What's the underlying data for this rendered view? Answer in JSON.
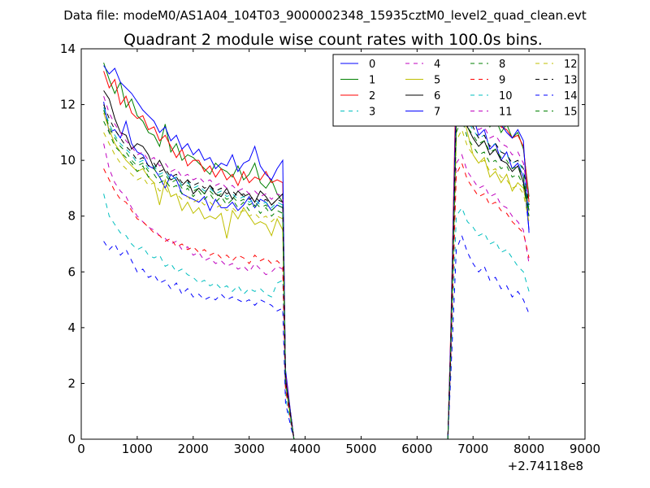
{
  "figure": {
    "suptitle": "Data file: modeM0/AS1A04_104T03_9000002348_15935cztM0_level2_quad_clean.evt"
  },
  "chart_data": {
    "type": "line",
    "title": "Quadrant 2 module wise count rates with 100.0s bins.",
    "xlabel": "",
    "ylabel": "",
    "x_offset_label": "+2.74118e8",
    "xlim": [
      0,
      9000
    ],
    "ylim": [
      0,
      14
    ],
    "xticks": [
      0,
      1000,
      2000,
      3000,
      4000,
      5000,
      6000,
      7000,
      8000,
      9000
    ],
    "yticks": [
      0,
      2,
      4,
      6,
      8,
      10,
      12,
      14
    ],
    "xtick_labels": [
      "0",
      "1000",
      "2000",
      "3000",
      "4000",
      "5000",
      "6000",
      "7000",
      "8000",
      "9000"
    ],
    "ytick_labels": [
      "0",
      "2",
      "4",
      "6",
      "8",
      "10",
      "12",
      "14"
    ],
    "grid": false,
    "legend_position": "top-right",
    "legend_columns": 4,
    "x": [
      400,
      500,
      600,
      700,
      800,
      900,
      1000,
      1100,
      1200,
      1300,
      1400,
      1500,
      1600,
      1700,
      1800,
      1900,
      2000,
      2100,
      2200,
      2300,
      2400,
      2500,
      2600,
      2700,
      2800,
      2900,
      3000,
      3100,
      3200,
      3300,
      3400,
      3500,
      3600,
      3650,
      3750,
      3800,
      3850,
      6500,
      6550,
      6600,
      6700,
      6800,
      6900,
      7000,
      7100,
      7200,
      7300,
      7400,
      7500,
      7600,
      7700,
      7800,
      7900,
      8000
    ],
    "series": [
      {
        "name": "0",
        "color": "#0000ff",
        "style": "solid",
        "values": [
          12.1,
          11.0,
          11.1,
          10.8,
          11.4,
          10.6,
          10.3,
          10.2,
          9.8,
          9.7,
          9.4,
          9.0,
          9.5,
          9.3,
          8.8,
          8.7,
          8.6,
          8.5,
          8.7,
          8.2,
          8.6,
          8.3,
          8.3,
          8.5,
          8.2,
          8.4,
          8.7,
          8.3,
          8.6,
          8.5,
          8.2,
          8.4,
          8.3,
          2.5,
          0.8,
          0.0,
          0.0,
          0.0,
          0.0,
          3.0,
          11.4,
          12.3,
          11.2,
          11.6,
          10.9,
          11.1,
          10.4,
          10.6,
          10.0,
          10.3,
          9.7,
          9.9,
          9.4,
          7.5
        ]
      },
      {
        "name": "1",
        "color": "#008000",
        "style": "solid",
        "values": [
          13.5,
          12.9,
          12.4,
          12.8,
          11.9,
          12.2,
          11.6,
          11.4,
          11.0,
          10.9,
          10.5,
          11.3,
          10.3,
          10.6,
          10.0,
          10.2,
          10.1,
          9.9,
          9.7,
          9.5,
          9.9,
          9.7,
          9.6,
          9.4,
          9.8,
          9.3,
          9.5,
          9.9,
          9.2,
          9.0,
          9.3,
          8.8,
          8.5,
          2.0,
          0.7,
          0.0,
          0.0,
          0.0,
          0.0,
          3.5,
          12.8,
          13.0,
          12.6,
          12.1,
          11.8,
          11.7,
          11.2,
          11.5,
          11.0,
          11.3,
          10.8,
          11.0,
          10.4,
          8.7
        ]
      },
      {
        "name": "2",
        "color": "#ff0000",
        "style": "solid",
        "values": [
          13.2,
          12.6,
          12.9,
          12.0,
          12.3,
          11.7,
          11.5,
          11.6,
          11.1,
          11.2,
          10.7,
          10.9,
          10.5,
          10.1,
          10.4,
          9.8,
          10.0,
          10.0,
          9.6,
          9.8,
          9.4,
          9.7,
          9.3,
          9.5,
          9.1,
          9.6,
          9.2,
          9.4,
          9.3,
          9.6,
          9.2,
          9.3,
          9.2,
          2.3,
          0.8,
          0.0,
          0.0,
          0.0,
          0.0,
          3.8,
          13.3,
          12.7,
          12.3,
          12.6,
          11.9,
          12.0,
          11.5,
          11.6,
          11.2,
          11.1,
          10.8,
          10.9,
          10.5,
          8.5
        ]
      },
      {
        "name": "3",
        "color": "#00bfbf",
        "style": "dashed",
        "values": [
          8.8,
          8.0,
          7.7,
          7.4,
          7.3,
          7.0,
          6.8,
          6.9,
          6.6,
          6.5,
          6.6,
          6.2,
          6.3,
          6.0,
          6.1,
          5.9,
          5.8,
          5.6,
          5.7,
          5.5,
          5.6,
          5.4,
          5.5,
          5.3,
          5.5,
          5.2,
          5.4,
          5.3,
          5.4,
          5.2,
          5.1,
          5.6,
          5.7,
          1.5,
          0.5,
          0.0,
          0.0,
          0.0,
          0.0,
          2.5,
          8.0,
          8.3,
          7.8,
          7.6,
          7.3,
          7.4,
          7.0,
          7.1,
          6.7,
          6.8,
          6.5,
          6.2,
          6.0,
          5.3
        ]
      },
      {
        "name": "4",
        "color": "#bf00bf",
        "style": "dashed",
        "values": [
          10.6,
          9.7,
          9.2,
          8.9,
          8.7,
          8.3,
          8.0,
          7.8,
          7.6,
          7.5,
          7.3,
          7.2,
          7.0,
          7.1,
          6.8,
          6.9,
          6.6,
          6.7,
          6.4,
          6.5,
          6.3,
          6.4,
          6.2,
          6.3,
          6.1,
          6.2,
          6.0,
          6.3,
          6.1,
          5.9,
          6.0,
          6.2,
          6.1,
          1.8,
          0.6,
          0.0,
          0.0,
          0.0,
          0.0,
          2.8,
          9.9,
          10.2,
          9.6,
          9.3,
          9.0,
          9.1,
          8.7,
          8.8,
          8.4,
          8.3,
          8.0,
          7.8,
          7.5,
          6.3
        ]
      },
      {
        "name": "5",
        "color": "#bfbf00",
        "style": "solid",
        "values": [
          11.7,
          11.1,
          10.6,
          10.3,
          10.0,
          9.8,
          9.6,
          9.7,
          9.4,
          9.2,
          8.4,
          9.3,
          8.7,
          8.8,
          8.2,
          8.5,
          8.1,
          8.3,
          7.9,
          8.0,
          7.9,
          8.1,
          7.2,
          8.2,
          7.9,
          8.3,
          8.0,
          7.7,
          7.8,
          7.7,
          7.3,
          7.9,
          7.5,
          2.1,
          0.7,
          0.0,
          0.0,
          0.0,
          0.0,
          3.2,
          11.2,
          11.8,
          11.0,
          10.2,
          9.9,
          10.1,
          9.4,
          9.6,
          9.2,
          9.5,
          8.9,
          9.2,
          9.0,
          8.0
        ]
      },
      {
        "name": "6",
        "color": "#000000",
        "style": "solid",
        "values": [
          12.5,
          12.2,
          11.5,
          11.0,
          10.9,
          10.4,
          10.6,
          10.5,
          10.2,
          9.7,
          10.0,
          9.6,
          9.3,
          9.4,
          9.1,
          9.3,
          8.8,
          9.0,
          8.8,
          9.1,
          8.8,
          8.7,
          9.0,
          8.6,
          8.9,
          8.7,
          8.8,
          8.5,
          8.9,
          8.7,
          8.4,
          8.6,
          8.8,
          2.1,
          0.7,
          0.0,
          0.0,
          0.0,
          0.0,
          3.3,
          12.3,
          11.6,
          11.2,
          10.8,
          10.5,
          10.7,
          10.2,
          10.4,
          10.0,
          9.9,
          9.6,
          9.8,
          9.2,
          8.2
        ]
      },
      {
        "name": "7",
        "color": "#0000ff",
        "style": "solid",
        "values": [
          13.4,
          13.1,
          13.3,
          12.8,
          12.6,
          12.4,
          12.1,
          11.8,
          11.6,
          11.4,
          11.0,
          11.2,
          10.7,
          10.9,
          10.4,
          10.6,
          10.2,
          10.4,
          10.0,
          10.1,
          9.7,
          9.9,
          9.8,
          10.2,
          9.6,
          9.9,
          10.0,
          10.5,
          9.8,
          9.5,
          9.3,
          9.7,
          10.0,
          2.2,
          0.8,
          0.0,
          0.0,
          0.0,
          0.0,
          3.6,
          12.6,
          13.4,
          12.9,
          12.5,
          12.2,
          11.9,
          11.4,
          11.7,
          11.3,
          11.0,
          10.8,
          11.1,
          10.7,
          7.4
        ]
      },
      {
        "name": "8",
        "color": "#008000",
        "style": "dashed",
        "values": [
          11.4,
          11.0,
          10.5,
          10.3,
          10.1,
          9.9,
          9.6,
          9.8,
          9.4,
          9.5,
          9.2,
          9.3,
          9.0,
          9.1,
          8.8,
          9.0,
          8.7,
          8.9,
          8.6,
          8.8,
          8.5,
          8.7,
          8.4,
          8.6,
          8.3,
          8.5,
          8.2,
          8.4,
          8.1,
          8.3,
          8.0,
          8.2,
          8.1,
          2.0,
          0.7,
          0.0,
          0.0,
          0.0,
          0.0,
          3.1,
          11.0,
          11.5,
          10.8,
          10.5,
          10.2,
          10.3,
          9.9,
          10.0,
          9.7,
          9.8,
          9.4,
          9.5,
          9.1,
          8.0
        ]
      },
      {
        "name": "9",
        "color": "#ff0000",
        "style": "dashed",
        "values": [
          9.7,
          9.3,
          8.9,
          8.6,
          8.5,
          8.2,
          7.9,
          7.8,
          7.6,
          7.4,
          7.3,
          7.1,
          7.2,
          6.9,
          7.0,
          6.8,
          6.9,
          6.7,
          6.8,
          6.6,
          6.7,
          6.5,
          6.6,
          6.4,
          6.6,
          6.5,
          6.3,
          6.6,
          6.4,
          6.5,
          6.3,
          6.4,
          6.2,
          1.8,
          0.6,
          0.0,
          0.0,
          0.0,
          0.0,
          2.9,
          9.5,
          9.9,
          9.3,
          9.0,
          8.7,
          8.8,
          8.4,
          8.5,
          8.2,
          8.1,
          7.8,
          7.6,
          7.4,
          6.5
        ]
      },
      {
        "name": "10",
        "color": "#00bfbf",
        "style": "dashed",
        "values": [
          11.9,
          11.3,
          10.9,
          10.6,
          10.4,
          10.2,
          9.9,
          10.0,
          9.7,
          9.8,
          9.5,
          9.6,
          9.3,
          9.4,
          9.1,
          9.2,
          9.0,
          9.1,
          8.9,
          9.0,
          8.8,
          8.9,
          8.7,
          8.8,
          8.6,
          8.7,
          8.5,
          8.6,
          8.4,
          8.5,
          8.3,
          8.5,
          8.4,
          2.1,
          0.7,
          0.0,
          0.0,
          0.0,
          0.0,
          3.3,
          11.6,
          12.0,
          11.4,
          11.1,
          10.8,
          10.9,
          10.5,
          10.6,
          10.3,
          10.2,
          9.9,
          10.0,
          9.6,
          8.3
        ]
      },
      {
        "name": "11",
        "color": "#bf00bf",
        "style": "dashed",
        "values": [
          12.3,
          11.7,
          11.3,
          11.0,
          10.7,
          10.5,
          10.2,
          10.3,
          10.0,
          10.1,
          9.8,
          9.9,
          9.6,
          9.7,
          9.4,
          9.5,
          9.3,
          9.4,
          9.2,
          9.3,
          9.1,
          9.2,
          9.0,
          9.1,
          8.9,
          9.0,
          8.8,
          8.9,
          8.7,
          8.8,
          8.6,
          8.8,
          8.7,
          2.2,
          0.7,
          0.0,
          0.0,
          0.0,
          0.0,
          3.4,
          12.0,
          12.4,
          11.8,
          11.5,
          11.1,
          11.2,
          10.8,
          10.9,
          10.6,
          10.5,
          10.2,
          10.3,
          9.9,
          8.6
        ]
      },
      {
        "name": "12",
        "color": "#bfbf00",
        "style": "dashed",
        "values": [
          11.0,
          10.6,
          10.2,
          9.9,
          9.7,
          9.5,
          9.3,
          9.4,
          9.1,
          9.2,
          8.9,
          9.0,
          8.7,
          8.8,
          8.6,
          8.7,
          8.5,
          8.6,
          8.4,
          8.5,
          8.3,
          8.4,
          8.2,
          8.3,
          8.1,
          8.2,
          8.0,
          8.1,
          7.9,
          8.0,
          7.8,
          8.0,
          7.9,
          2.0,
          0.6,
          0.0,
          0.0,
          0.0,
          0.0,
          3.0,
          10.7,
          11.1,
          10.5,
          10.2,
          9.9,
          10.0,
          9.6,
          9.7,
          9.4,
          9.3,
          9.0,
          9.1,
          8.8,
          7.8
        ]
      },
      {
        "name": "13",
        "color": "#000000",
        "style": "dashed",
        "values": [
          12.0,
          11.5,
          11.1,
          10.8,
          10.5,
          10.3,
          10.0,
          10.1,
          9.8,
          9.9,
          9.6,
          9.7,
          9.4,
          9.5,
          9.2,
          9.3,
          9.1,
          9.2,
          9.0,
          9.1,
          8.9,
          9.0,
          8.8,
          8.9,
          8.7,
          8.8,
          8.6,
          8.7,
          8.5,
          8.6,
          8.4,
          8.6,
          8.5,
          2.1,
          0.7,
          0.0,
          0.0,
          0.0,
          0.0,
          3.2,
          11.7,
          12.1,
          11.5,
          11.2,
          10.8,
          10.9,
          10.5,
          10.6,
          10.3,
          10.2,
          9.9,
          10.0,
          9.7,
          8.4
        ]
      },
      {
        "name": "14",
        "color": "#0000ff",
        "style": "dashed",
        "values": [
          7.1,
          6.8,
          7.0,
          6.6,
          6.8,
          6.4,
          6.0,
          6.1,
          5.8,
          5.9,
          5.6,
          5.7,
          5.4,
          5.6,
          5.2,
          5.4,
          5.1,
          5.2,
          5.0,
          5.1,
          5.0,
          5.2,
          5.0,
          5.1,
          5.0,
          4.9,
          5.0,
          4.8,
          5.0,
          4.9,
          4.8,
          4.6,
          4.7,
          1.3,
          0.4,
          0.0,
          0.0,
          0.0,
          0.0,
          2.2,
          6.8,
          7.3,
          6.7,
          6.3,
          6.0,
          6.2,
          5.7,
          5.8,
          5.4,
          5.5,
          5.1,
          5.3,
          5.0,
          4.5
        ]
      },
      {
        "name": "15",
        "color": "#008000",
        "style": "dashed",
        "values": [
          11.8,
          11.2,
          10.8,
          10.5,
          10.3,
          10.0,
          9.8,
          9.9,
          9.6,
          9.7,
          9.4,
          9.5,
          9.2,
          9.3,
          9.0,
          9.1,
          8.9,
          9.0,
          8.8,
          8.9,
          8.7,
          8.8,
          8.6,
          8.7,
          8.5,
          8.6,
          8.4,
          8.5,
          8.3,
          8.4,
          8.2,
          8.4,
          8.3,
          2.1,
          0.7,
          0.0,
          0.0,
          0.0,
          0.0,
          3.2,
          11.4,
          11.8,
          11.2,
          10.9,
          10.6,
          10.7,
          10.3,
          10.4,
          10.1,
          10.0,
          9.7,
          9.8,
          9.4,
          8.2
        ]
      }
    ]
  }
}
